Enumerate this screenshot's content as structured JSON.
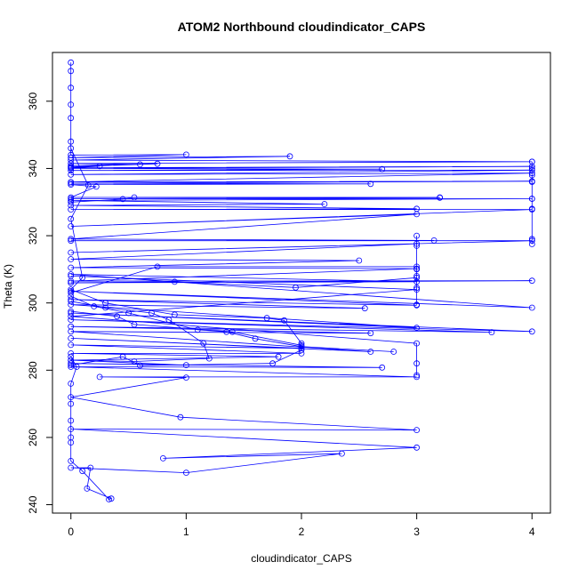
{
  "chart_data": {
    "type": "line",
    "title": "ATOM2 Northbound cloudindicator_CAPS",
    "xlabel": "cloudindicator_CAPS",
    "ylabel": "Theta (K)",
    "xlim": [
      -0.16,
      4.16
    ],
    "ylim": [
      237.5,
      374.5
    ],
    "x_ticks": [
      0,
      1,
      2,
      3,
      4
    ],
    "y_ticks": [
      240,
      260,
      280,
      300,
      320,
      340,
      360
    ],
    "grid": false,
    "legend": "none",
    "color": "#0000ff",
    "series": [
      {
        "points": [
          [
            0,
            371.5
          ],
          [
            0,
            369
          ],
          [
            0,
            364
          ],
          [
            0,
            359
          ],
          [
            0,
            355
          ],
          [
            0,
            348
          ],
          [
            0,
            344
          ],
          [
            1,
            344.1
          ],
          [
            0,
            343.2
          ],
          [
            1.9,
            343.6
          ],
          [
            0,
            342.5
          ],
          [
            4,
            342
          ],
          [
            0,
            341.5
          ],
          [
            0.6,
            341.2
          ],
          [
            0,
            340.8
          ],
          [
            0.75,
            341.4
          ],
          [
            0,
            340.5
          ],
          [
            0.25,
            340.7
          ],
          [
            0,
            340.2
          ],
          [
            4,
            340.6
          ],
          [
            0,
            340.0
          ],
          [
            2.7,
            339.8
          ],
          [
            0,
            339.4
          ],
          [
            4,
            339.5
          ],
          [
            0,
            338.2
          ],
          [
            4,
            338.6
          ],
          [
            0,
            336.0
          ],
          [
            4,
            336.2
          ],
          [
            0,
            335.6
          ],
          [
            2.6,
            335.4
          ],
          [
            0,
            335.2
          ],
          [
            0.22,
            334.6
          ],
          [
            0,
            331.4
          ],
          [
            3.2,
            331.3
          ],
          [
            0,
            331.0
          ],
          [
            4,
            331.0
          ],
          [
            0,
            330.5
          ],
          [
            2.2,
            329.4
          ],
          [
            0,
            329.0
          ],
          [
            3,
            328.0
          ],
          [
            0,
            327.8
          ],
          [
            4,
            327.8
          ],
          [
            0,
            322.8
          ],
          [
            3,
            326.4
          ],
          [
            0,
            319.0
          ],
          [
            3.15,
            318.6
          ],
          [
            0,
            318.5
          ],
          [
            4,
            318.5
          ],
          [
            0,
            315.0
          ],
          [
            3,
            317.6
          ],
          [
            0,
            313.0
          ],
          [
            2.5,
            312.6
          ],
          [
            0,
            310.5
          ],
          [
            3,
            310.2
          ],
          [
            0,
            306.5
          ],
          [
            4,
            306.6
          ],
          [
            0,
            306.0
          ],
          [
            3,
            306.3
          ],
          [
            0,
            308.5
          ],
          [
            4,
            298.6
          ],
          [
            0,
            303.5
          ],
          [
            3,
            299.3
          ],
          [
            0,
            301.0
          ],
          [
            2.55,
            298.4
          ],
          [
            0,
            299.5
          ],
          [
            3,
            292.6
          ],
          [
            0,
            297.0
          ],
          [
            4,
            291.5
          ],
          [
            0,
            295.0
          ],
          [
            3.65,
            291.3
          ],
          [
            0,
            293.0
          ],
          [
            2.6,
            291.0
          ],
          [
            0,
            291.5
          ],
          [
            2.6,
            285.5
          ],
          [
            0,
            289.5
          ],
          [
            2,
            286.5
          ],
          [
            0,
            287.5
          ],
          [
            2,
            285.0
          ],
          [
            0,
            285.0
          ],
          [
            1.8,
            284.0
          ],
          [
            0,
            283.0
          ],
          [
            1,
            281.5
          ],
          [
            0,
            282.0
          ],
          [
            2.7,
            280.8
          ],
          [
            0,
            281.0
          ],
          [
            3,
            278.0
          ],
          [
            0.25,
            278.0
          ],
          [
            1,
            277.8
          ],
          [
            0,
            272.0
          ],
          [
            0.95,
            266.0
          ],
          [
            3,
            262.2
          ],
          [
            0,
            262.5
          ],
          [
            3,
            257.0
          ],
          [
            0.8,
            253.8
          ],
          [
            2.35,
            255.2
          ],
          [
            1,
            249.5
          ],
          [
            0,
            251.0
          ],
          [
            0.17,
            251.0
          ],
          [
            0.14,
            244.8
          ],
          [
            0.35,
            241.8
          ],
          [
            0.33,
            241.6
          ],
          [
            0.1,
            250.0
          ],
          [
            0,
            253.0
          ],
          [
            0,
            258.5
          ],
          [
            0,
            260.0
          ],
          [
            0,
            265.0
          ],
          [
            0,
            270.0
          ],
          [
            0,
            276.0
          ],
          [
            0.05,
            281.0
          ],
          [
            0,
            284.0
          ]
        ]
      },
      {
        "points": [
          [
            0,
            346.0
          ],
          [
            0.15,
            335.0
          ],
          [
            0,
            325.0
          ],
          [
            0.1,
            307.5
          ],
          [
            0,
            304.0
          ],
          [
            0.3,
            300.0
          ],
          [
            0.9,
            296.5
          ],
          [
            1.7,
            295.5
          ],
          [
            1.85,
            294.8
          ],
          [
            2,
            288.0
          ],
          [
            2,
            286.0
          ],
          [
            1.75,
            282.0
          ],
          [
            0.6,
            281.4
          ],
          [
            0.45,
            284.0
          ],
          [
            0,
            281.5
          ]
        ]
      },
      {
        "points": [
          [
            0,
            302.0
          ],
          [
            0.2,
            299.0
          ],
          [
            0.5,
            297.0
          ],
          [
            1.1,
            292.0
          ],
          [
            1.35,
            291.4
          ],
          [
            1.6,
            289.4
          ],
          [
            2,
            287.0
          ],
          [
            2.8,
            285.5
          ]
        ]
      },
      {
        "points": [
          [
            0,
            300.5
          ],
          [
            0.3,
            298.6
          ],
          [
            0.7,
            297.0
          ],
          [
            0.85,
            295.0
          ],
          [
            1.15,
            288.0
          ],
          [
            1.2,
            283.5
          ],
          [
            0.55,
            282.6
          ],
          [
            0,
            283.0
          ]
        ]
      },
      {
        "points": [
          [
            0,
            297.5
          ],
          [
            0.4,
            296.0
          ],
          [
            0.55,
            293.6
          ],
          [
            1.4,
            291.4
          ],
          [
            2,
            287.4
          ]
        ]
      },
      {
        "points": [
          [
            0,
            308.0
          ],
          [
            3,
            304.0
          ],
          [
            0,
            296.0
          ],
          [
            3,
            288.0
          ],
          [
            3,
            282.0
          ],
          [
            3,
            278.5
          ]
        ]
      },
      {
        "points": [
          [
            3,
            320.0
          ],
          [
            3,
            317.0
          ],
          [
            3,
            310.0
          ],
          [
            3,
            308.0
          ],
          [
            3,
            304.5
          ],
          [
            3,
            299.5
          ]
        ]
      },
      {
        "points": [
          [
            4,
            342.0
          ],
          [
            4,
            340.0
          ],
          [
            4,
            338.0
          ],
          [
            4,
            336.0
          ],
          [
            4,
            331.0
          ],
          [
            4,
            328.0
          ],
          [
            4,
            319.0
          ],
          [
            4,
            317.5
          ]
        ]
      },
      {
        "points": [
          [
            0,
            330.0
          ],
          [
            0.45,
            330.9
          ],
          [
            0.55,
            331.4
          ],
          [
            3.2,
            331.4
          ]
        ]
      },
      {
        "points": [
          [
            0,
            303.0
          ],
          [
            0.75,
            310.8
          ],
          [
            3,
            310.8
          ]
        ]
      },
      {
        "points": [
          [
            0,
            306.0
          ],
          [
            0.9,
            306.3
          ],
          [
            1.95,
            304.6
          ],
          [
            3,
            307.5
          ]
        ]
      }
    ]
  }
}
